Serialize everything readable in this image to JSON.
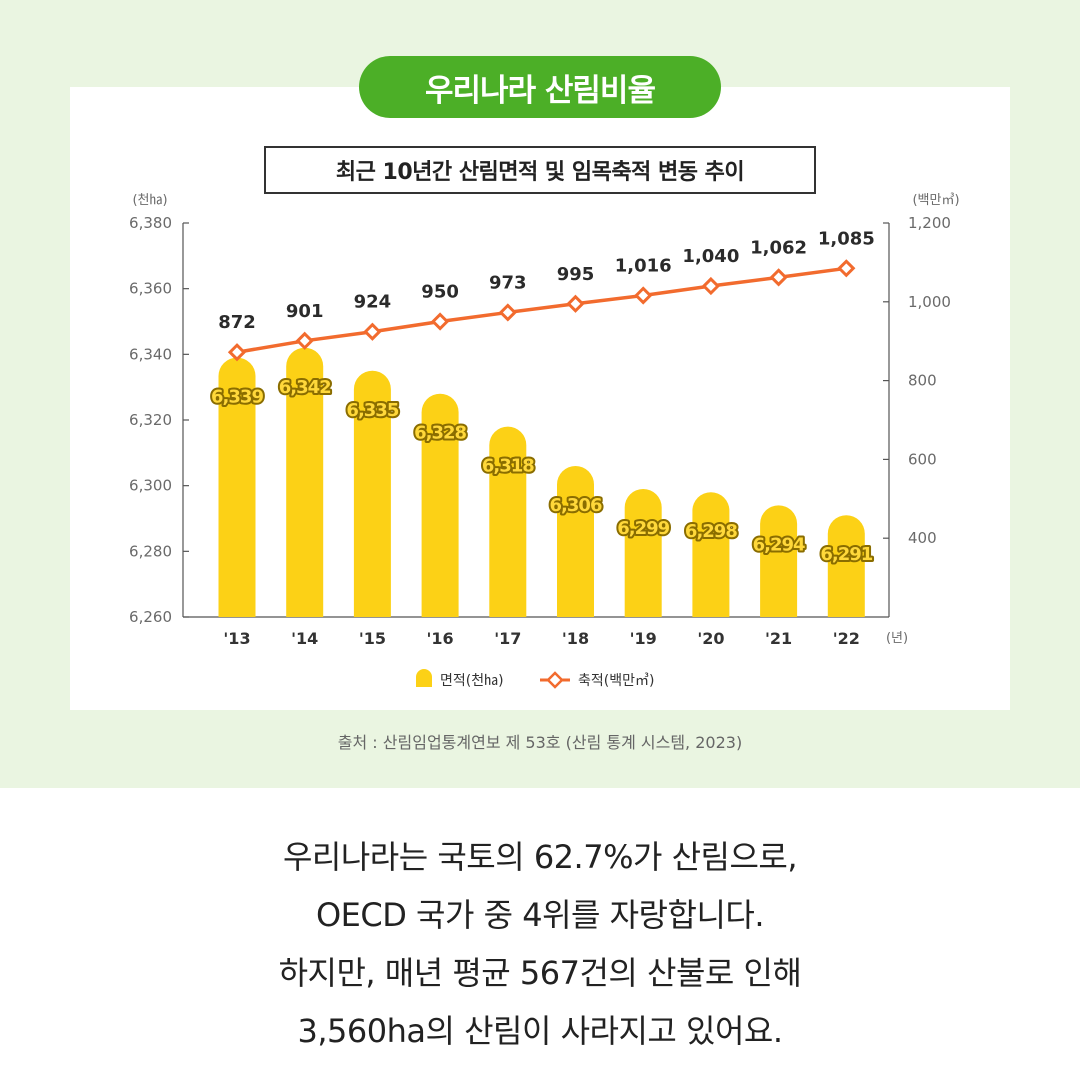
{
  "header": {
    "badge": "우리나라 산림비율",
    "subtitle": "최근 10년간 산림면적 및 임목축적 변동 추이"
  },
  "colors": {
    "bar": "#fcd116",
    "bar_label_fill": "#ffd83a",
    "bar_label_stroke": "#8a6d00",
    "line": "#f26b2e",
    "badge": "#4caf27",
    "background": "#eaf5e1"
  },
  "chart_data": {
    "type": "bar",
    "categories": [
      "'13",
      "'14",
      "'15",
      "'16",
      "'17",
      "'18",
      "'19",
      "'20",
      "'21",
      "'22"
    ],
    "x_unit": "(년)",
    "series": [
      {
        "name": "면적(천㏊)",
        "type": "bar",
        "axis": "left",
        "values": [
          6339,
          6342,
          6335,
          6328,
          6318,
          6306,
          6299,
          6298,
          6294,
          6291
        ],
        "labels": [
          "6,339",
          "6,342",
          "6,335",
          "6,328",
          "6,318",
          "6,306",
          "6,299",
          "6,298",
          "6,294",
          "6,291"
        ]
      },
      {
        "name": "축적(백만㎥)",
        "type": "line",
        "axis": "right",
        "values": [
          872,
          901,
          924,
          950,
          973,
          995,
          1016,
          1040,
          1062,
          1085
        ],
        "labels": [
          "872",
          "901",
          "924",
          "950",
          "973",
          "995",
          "1,016",
          "1,040",
          "1,062",
          "1,085"
        ]
      }
    ],
    "left_axis": {
      "unit": "(천㏊)",
      "ylim": [
        6260,
        6380
      ],
      "ticks": [
        6260,
        6280,
        6300,
        6320,
        6340,
        6360,
        6380
      ],
      "tick_labels": [
        "6,260",
        "6,280",
        "6,300",
        "6,320",
        "6,340",
        "6,360",
        "6,380"
      ]
    },
    "right_axis": {
      "unit": "(백만㎥)",
      "ylim": [
        200,
        1200
      ],
      "ticks": [
        400,
        600,
        800,
        1000,
        1200
      ],
      "tick_labels": [
        "400",
        "600",
        "800",
        "1,000",
        "1,200"
      ]
    },
    "legend_position": "bottom-center",
    "grid": false
  },
  "source": "출처 : 산림임업통계연보 제 53호 (산림 통계 시스템, 2023)",
  "body": {
    "lines": [
      "우리나라는 국토의 62.7%가 산림으로,",
      "OECD 국가 중 4위를 자랑합니다.",
      "하지만, 매년 평균 567건의 산불로 인해",
      "3,560ha의 산림이 사라지고 있어요."
    ]
  }
}
